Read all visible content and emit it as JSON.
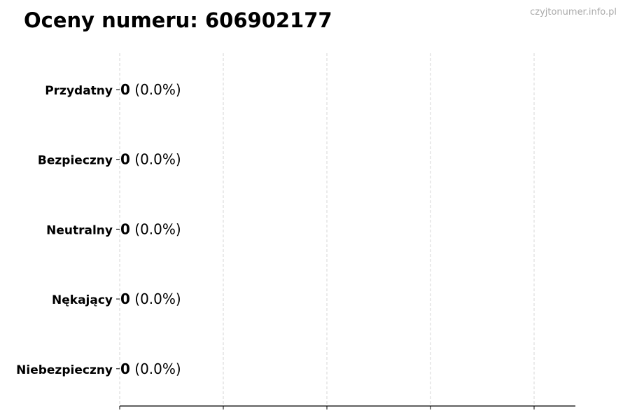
{
  "chart_data": {
    "type": "bar",
    "orientation": "horizontal",
    "title": "Oceny numeru: 606902177",
    "watermark": "czyjtonumer.info.pl",
    "categories": [
      "Przydatny",
      "Bezpieczny",
      "Neutralny",
      "Nękający",
      "Niebezpieczny"
    ],
    "values": [
      0,
      0,
      0,
      0,
      0
    ],
    "data_labels": [
      {
        "count": "0",
        "percent": "(0.0%)"
      },
      {
        "count": "0",
        "percent": "(0.0%)"
      },
      {
        "count": "0",
        "percent": "(0.0%)"
      },
      {
        "count": "0",
        "percent": "(0.0%)"
      },
      {
        "count": "0",
        "percent": "(0.0%)"
      }
    ],
    "xlabel": "",
    "ylabel": "",
    "x_ticks_labeled": false,
    "grid": "x dashed",
    "colors": {
      "grid": "#cccccc",
      "watermark": "#aaaaaa",
      "bar_edge": "#000000"
    }
  }
}
